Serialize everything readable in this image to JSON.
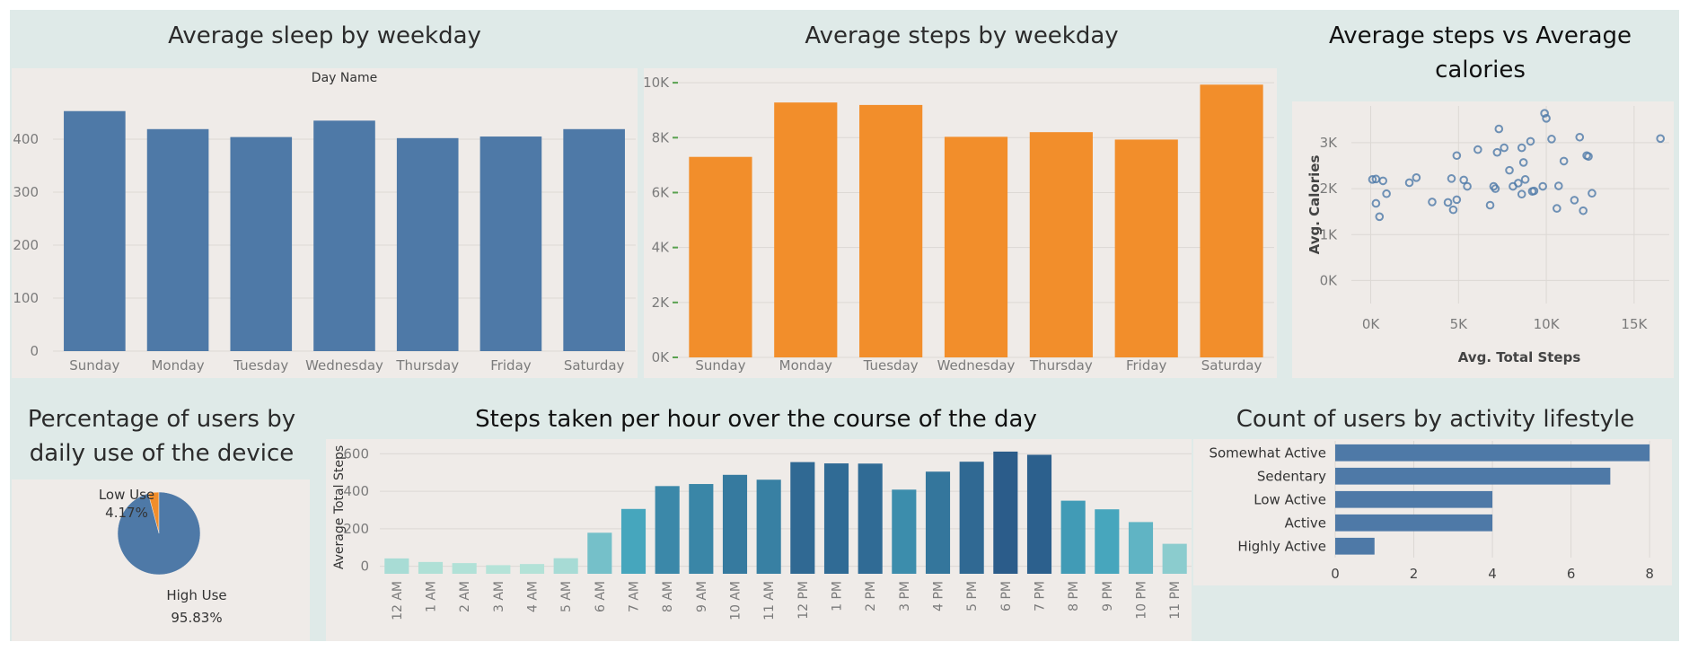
{
  "charts": {
    "sleep": {
      "title": "Average sleep by weekday",
      "header": "Day Name",
      "color": "#4e79a7"
    },
    "steps": {
      "title": "Average steps by weekday",
      "color": "#f28e2b"
    },
    "scatter": {
      "title_line1": "Average steps vs Average",
      "title_line2": "calories",
      "color": "#4e79a7"
    },
    "pie": {
      "title_line1": "Percentage of users by",
      "title_line2": "daily use of the device",
      "low_label": "Low Use",
      "low_pct": "4.17%",
      "high_label": "High Use",
      "high_pct": "95.83%",
      "low_color": "#f28e2b",
      "high_color": "#4e79a7"
    },
    "hourly": {
      "title": "Steps taken per hour over the course of the day"
    },
    "lifestyle": {
      "title": "Count of users by activity lifestyle",
      "color": "#4e79a7"
    }
  },
  "chart_data": [
    {
      "id": "sleep",
      "type": "bar",
      "title": "Average sleep by weekday",
      "xlabel": "Day Name",
      "ylabel": "",
      "categories": [
        "Sunday",
        "Monday",
        "Tuesday",
        "Wednesday",
        "Thursday",
        "Friday",
        "Saturday"
      ],
      "values": [
        453,
        419,
        404,
        435,
        402,
        405,
        419
      ],
      "ylim": [
        0,
        500
      ],
      "yticks": [
        0,
        100,
        200,
        300,
        400
      ],
      "ytick_labels": [
        "0",
        "100",
        "200",
        "300",
        "400"
      ],
      "grid": true
    },
    {
      "id": "steps",
      "type": "bar",
      "title": "Average steps by weekday",
      "xlabel": "",
      "ylabel": "",
      "categories": [
        "Sunday",
        "Monday",
        "Tuesday",
        "Wednesday",
        "Thursday",
        "Friday",
        "Saturday"
      ],
      "values": [
        7300,
        9280,
        9190,
        8030,
        8200,
        7930,
        9930
      ],
      "ylim": [
        0,
        10200
      ],
      "yticks": [
        0,
        2000,
        4000,
        6000,
        8000,
        10000
      ],
      "ytick_labels": [
        "0K",
        "2K",
        "4K",
        "6K",
        "8K",
        "10K"
      ],
      "grid": true
    },
    {
      "id": "scatter",
      "type": "scatter",
      "title": "Average steps vs Average calories",
      "xlabel": "Avg. Total Steps",
      "ylabel": "Avg. Calories",
      "xlim": [
        -1100,
        17000
      ],
      "ylim": [
        -500,
        3800
      ],
      "xticks": [
        0,
        5000,
        10000,
        15000
      ],
      "xtick_labels": [
        "0K",
        "5K",
        "10K",
        "15K"
      ],
      "yticks": [
        0,
        1000,
        2000,
        3000
      ],
      "ytick_labels": [
        "0K",
        "1K",
        "2K",
        "3K"
      ],
      "points": [
        [
          100,
          2200
        ],
        [
          300,
          2210
        ],
        [
          700,
          2170
        ],
        [
          300,
          1680
        ],
        [
          500,
          1390
        ],
        [
          900,
          1890
        ],
        [
          2200,
          2130
        ],
        [
          2600,
          2240
        ],
        [
          3500,
          1710
        ],
        [
          4400,
          1700
        ],
        [
          4600,
          2220
        ],
        [
          4700,
          1540
        ],
        [
          4900,
          1760
        ],
        [
          4900,
          2720
        ],
        [
          5300,
          2190
        ],
        [
          5500,
          2050
        ],
        [
          6100,
          2850
        ],
        [
          6800,
          1640
        ],
        [
          7000,
          2050
        ],
        [
          7100,
          2000
        ],
        [
          7200,
          2790
        ],
        [
          7300,
          3300
        ],
        [
          7600,
          2890
        ],
        [
          7900,
          2400
        ],
        [
          8100,
          2050
        ],
        [
          8400,
          2120
        ],
        [
          8600,
          2890
        ],
        [
          8600,
          1880
        ],
        [
          8700,
          2570
        ],
        [
          8800,
          2200
        ],
        [
          9100,
          3030
        ],
        [
          9200,
          1940
        ],
        [
          9300,
          1950
        ],
        [
          9800,
          2050
        ],
        [
          9900,
          3640
        ],
        [
          10000,
          3530
        ],
        [
          10300,
          3080
        ],
        [
          10600,
          1570
        ],
        [
          10700,
          2060
        ],
        [
          11000,
          2600
        ],
        [
          11600,
          1750
        ],
        [
          11900,
          3120
        ],
        [
          12100,
          1520
        ],
        [
          12300,
          2720
        ],
        [
          12400,
          2700
        ],
        [
          12600,
          1900
        ],
        [
          16500,
          3090
        ]
      ],
      "grid": true
    },
    {
      "id": "pie",
      "type": "pie",
      "title": "Percentage of users by daily use of the device",
      "categories": [
        "Low Use",
        "High Use"
      ],
      "values": [
        4.17,
        95.83
      ]
    },
    {
      "id": "hourly",
      "type": "bar",
      "title": "Steps taken per hour over the course of the day",
      "xlabel": "",
      "ylabel": "Average Total Steps",
      "categories": [
        "12 AM",
        "1 AM",
        "2 AM",
        "3 AM",
        "4 AM",
        "5 AM",
        "6 AM",
        "7 AM",
        "8 AM",
        "9 AM",
        "10 AM",
        "11 AM",
        "12 PM",
        "1 PM",
        "2 PM",
        "3 PM",
        "4 PM",
        "5 PM",
        "6 PM",
        "7 PM",
        "8 PM",
        "9 PM",
        "10 PM",
        "11 PM"
      ],
      "values": [
        42,
        23,
        17,
        6,
        12,
        43,
        179,
        306,
        428,
        439,
        488,
        462,
        556,
        549,
        548,
        409,
        505,
        558,
        612,
        595,
        350,
        304,
        236,
        120
      ],
      "ylim": [
        -40,
        650
      ],
      "yticks": [
        0,
        200,
        400,
        600
      ],
      "ytick_labels": [
        "0",
        "200",
        "400",
        "600"
      ],
      "color_scale": [
        "#b5e3d8",
        "#45a5bd",
        "#2b5c8a"
      ],
      "grid": true
    },
    {
      "id": "lifestyle",
      "type": "bar",
      "orientation": "horizontal",
      "title": "Count of users by activity lifestyle",
      "categories": [
        "Somewhat Active",
        "Sedentary",
        "Low Active",
        "Active",
        "Highly Active"
      ],
      "values": [
        8,
        7,
        4,
        4,
        1
      ],
      "xlim": [
        0,
        8.5
      ],
      "xticks": [
        0,
        2,
        4,
        6,
        8
      ],
      "xtick_labels": [
        "0",
        "2",
        "4",
        "6",
        "8"
      ],
      "grid": true
    }
  ]
}
